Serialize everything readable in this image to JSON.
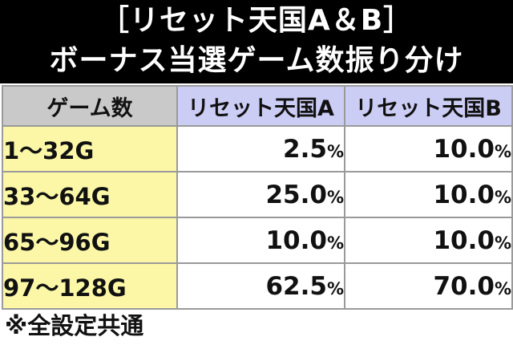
{
  "title": {
    "line1": "［リセット天国A＆B］",
    "line2": "ボーナス当選ゲーム数振り分け"
  },
  "table": {
    "headers": [
      "ゲーム数",
      "リセット天国A",
      "リセット天国B"
    ],
    "percent_sign": "%",
    "rows": [
      {
        "games": "1〜32G",
        "a": "2.5",
        "b": "10.0"
      },
      {
        "games": "33〜64G",
        "a": "25.0",
        "b": "10.0"
      },
      {
        "games": "65〜96G",
        "a": "10.0",
        "b": "10.0"
      },
      {
        "games": "97〜128G",
        "a": "62.5",
        "b": "70.0"
      }
    ]
  },
  "note": "※全設定共通",
  "colors": {
    "title_bg": "#000000",
    "header_games_bg": "#c9c9c9",
    "header_rate_bg": "#cccdf5",
    "games_cell_bg": "#fbf7a7",
    "grid": "#9a9a9a"
  }
}
